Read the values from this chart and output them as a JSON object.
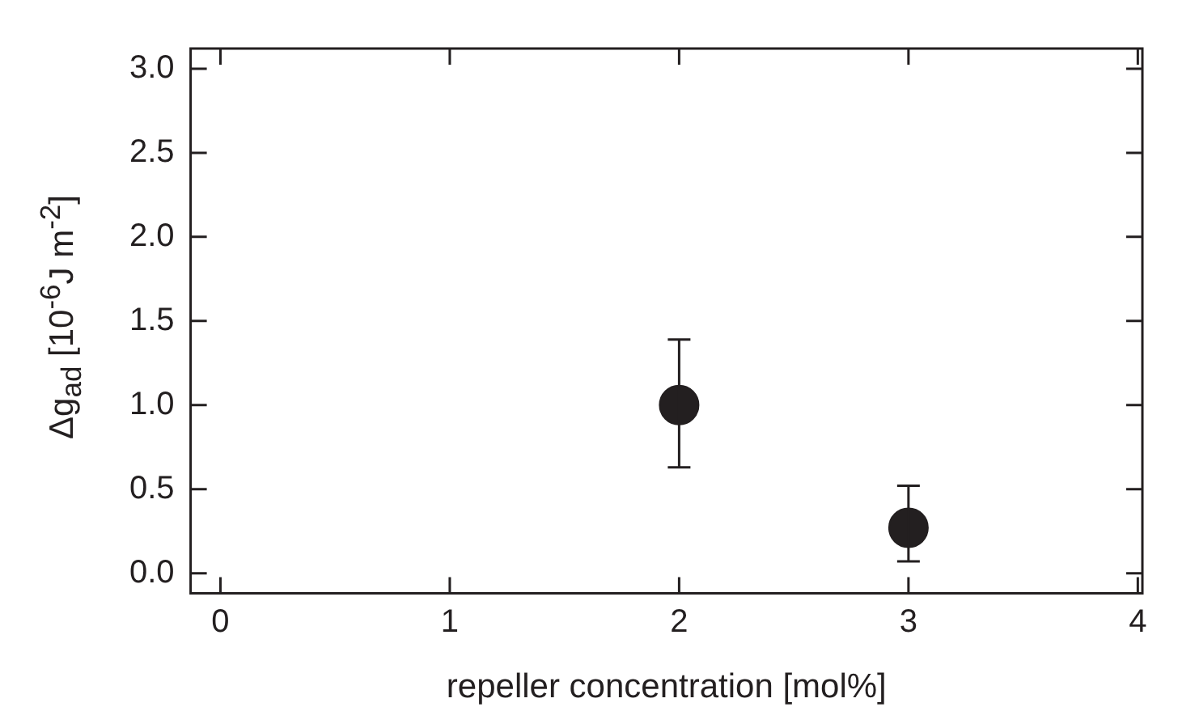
{
  "chart_data": {
    "type": "scatter",
    "xlabel": "repeller concentration [mol%]",
    "ylabel": "Δg$_{ad}$ [10$^{-6}$J m$^{-2}$]",
    "x": [
      2,
      3
    ],
    "series": [
      {
        "color": "#231f20",
        "values": [
          1.0,
          0.27
        ],
        "errors": [
          [
            0.63,
            1.39
          ],
          [
            0.07,
            0.52
          ]
        ]
      }
    ],
    "xlim": [
      -0.13,
      4.02
    ],
    "xticks": [
      0,
      1,
      2,
      3,
      4
    ],
    "ylim": [
      -0.12,
      3.12
    ],
    "yticks": [
      {
        "value": 0,
        "label": "0.0"
      },
      {
        "value": 0.5,
        "label": "0.5"
      },
      {
        "value": 1,
        "label": "1.0"
      },
      {
        "value": 1.5,
        "label": "1.5"
      },
      {
        "value": 2,
        "label": "2.0"
      },
      {
        "value": 2.5,
        "label": "2.5"
      },
      {
        "value": 3,
        "label": "3.0"
      }
    ],
    "grid": false,
    "legend": false,
    "marker": "circle"
  }
}
